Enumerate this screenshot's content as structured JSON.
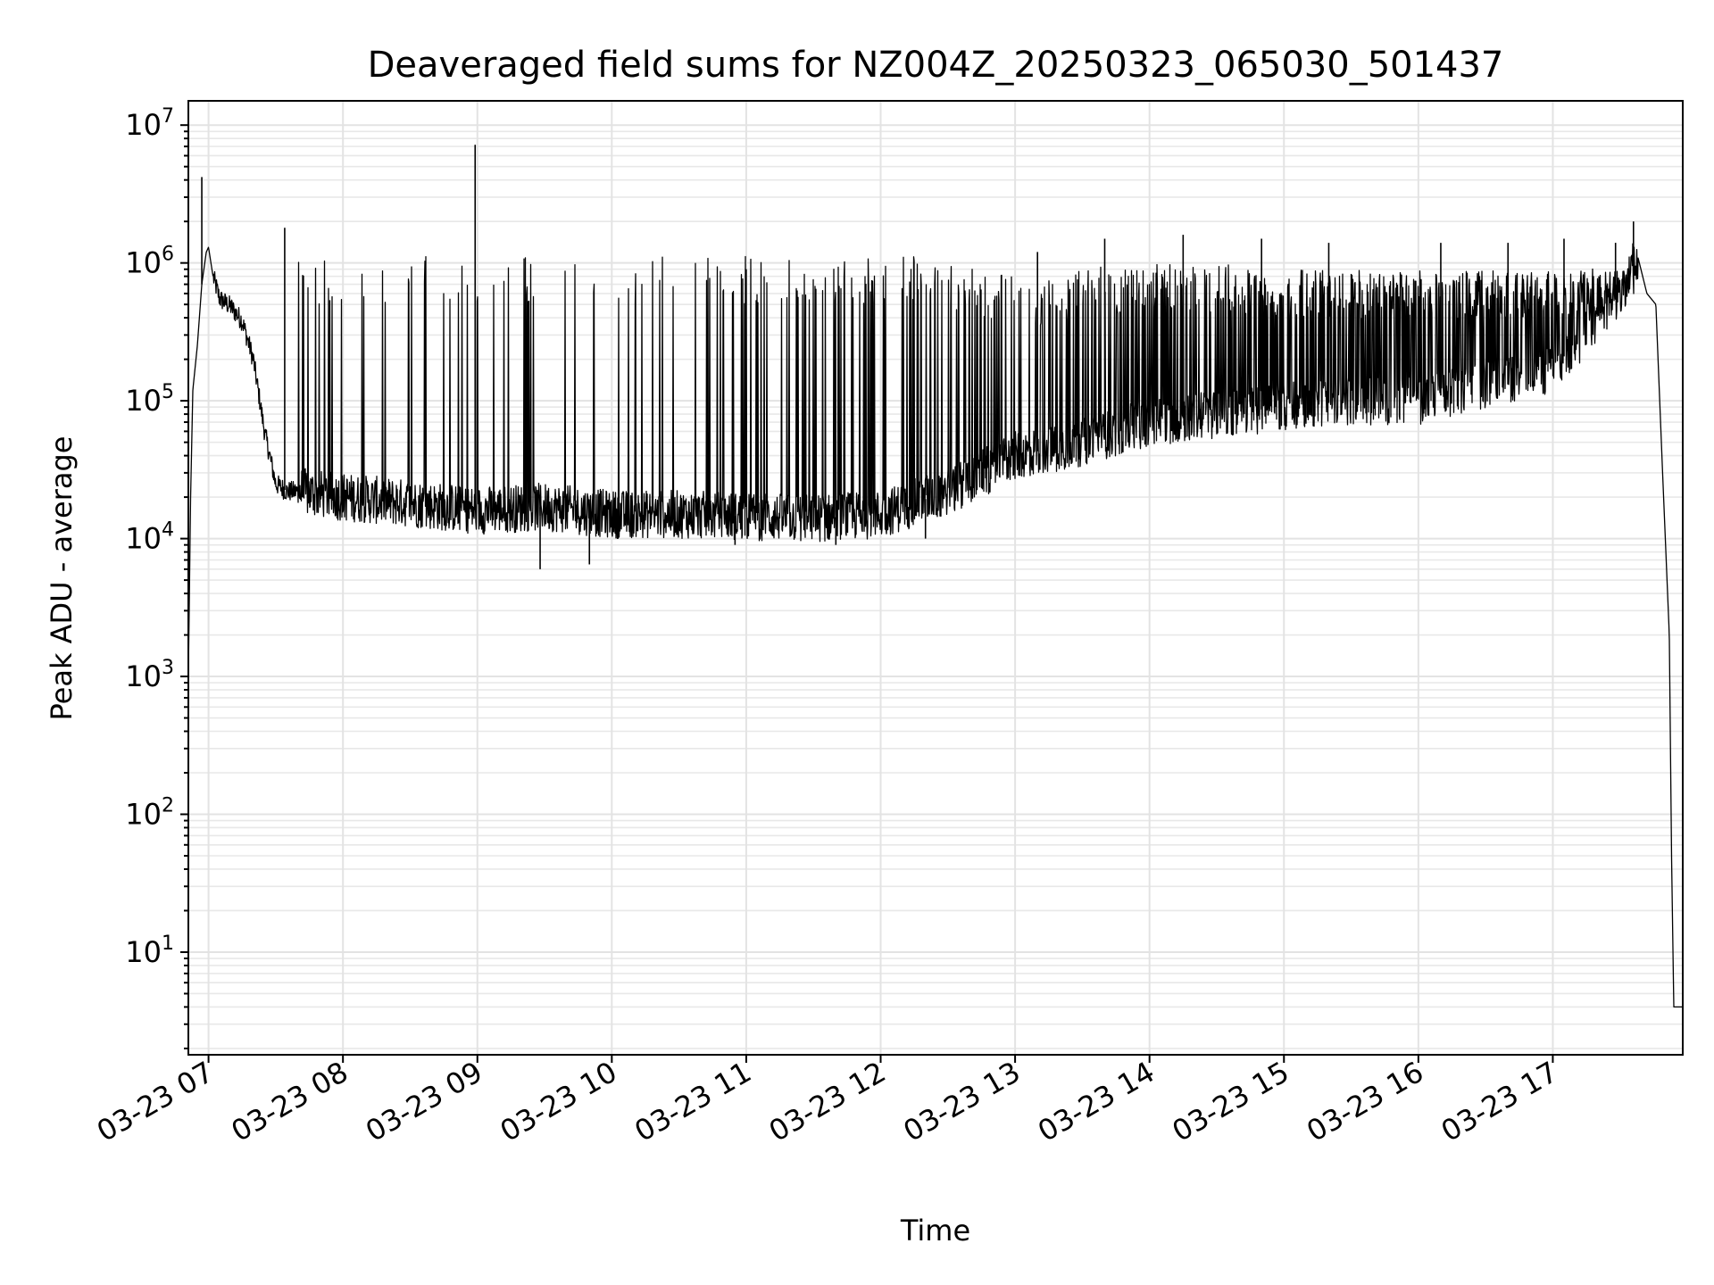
{
  "chart_data": {
    "type": "line",
    "title": "Deaveraged field sums for NZ004Z_20250323_065030_501437",
    "xlabel": "Time",
    "ylabel": "Peak ADU - average",
    "yscale": "log",
    "ylim": [
      1.8,
      15000000
    ],
    "xlim": [
      "2025-03-23 06:51",
      "2025-03-23 17:58"
    ],
    "grid": true,
    "colors": {
      "line": "#000000",
      "grid": "#e3e3e3"
    },
    "x_ticks": [
      {
        "value": "2025-03-23 07:00",
        "label": "03-23 07"
      },
      {
        "value": "2025-03-23 08:00",
        "label": "03-23 08"
      },
      {
        "value": "2025-03-23 09:00",
        "label": "03-23 09"
      },
      {
        "value": "2025-03-23 10:00",
        "label": "03-23 10"
      },
      {
        "value": "2025-03-23 11:00",
        "label": "03-23 11"
      },
      {
        "value": "2025-03-23 12:00",
        "label": "03-23 12"
      },
      {
        "value": "2025-03-23 13:00",
        "label": "03-23 13"
      },
      {
        "value": "2025-03-23 14:00",
        "label": "03-23 14"
      },
      {
        "value": "2025-03-23 15:00",
        "label": "03-23 15"
      },
      {
        "value": "2025-03-23 16:00",
        "label": "03-23 16"
      },
      {
        "value": "2025-03-23 17:00",
        "label": "03-23 17"
      }
    ],
    "y_ticks": [
      {
        "value": 10,
        "base": "10",
        "exp": "1"
      },
      {
        "value": 100,
        "base": "10",
        "exp": "2"
      },
      {
        "value": 1000,
        "base": "10",
        "exp": "3"
      },
      {
        "value": 10000,
        "base": "10",
        "exp": "4"
      },
      {
        "value": 100000,
        "base": "10",
        "exp": "5"
      },
      {
        "value": 1000000,
        "base": "10",
        "exp": "6"
      },
      {
        "value": 10000000,
        "base": "10",
        "exp": "7"
      }
    ],
    "series": [
      {
        "x": [
          "2025-03-23 06:51",
          "2025-03-23 06:52",
          "2025-03-23 06:53",
          "2025-03-23 06:55",
          "2025-03-23 06:57",
          "2025-03-23 06:59",
          "2025-03-23 07:00",
          "2025-03-23 07:02",
          "2025-03-23 07:05",
          "2025-03-23 07:10",
          "2025-03-23 07:15",
          "2025-03-23 07:20",
          "2025-03-23 07:25",
          "2025-03-23 07:30",
          "2025-03-23 07:35",
          "2025-03-23 07:40",
          "2025-03-23 08:00",
          "2025-03-23 08:30",
          "2025-03-23 09:00",
          "2025-03-23 09:30",
          "2025-03-23 10:00",
          "2025-03-23 10:30",
          "2025-03-23 11:00",
          "2025-03-23 11:30",
          "2025-03-23 12:00",
          "2025-03-23 12:30",
          "2025-03-23 13:00",
          "2025-03-23 13:30",
          "2025-03-23 14:00",
          "2025-03-23 14:30",
          "2025-03-23 15:00",
          "2025-03-23 15:30",
          "2025-03-23 16:00",
          "2025-03-23 16:30",
          "2025-03-23 17:00",
          "2025-03-23 17:30",
          "2025-03-23 17:38",
          "2025-03-23 17:42",
          "2025-03-23 17:46",
          "2025-03-23 17:49",
          "2025-03-23 17:52",
          "2025-03-23 17:53",
          "2025-03-23 17:54",
          "2025-03-23 17:56",
          "2025-03-23 17:58"
        ],
        "y": [
          1000,
          20000,
          120000,
          250000,
          700000,
          1200000,
          1300000,
          800000,
          550000,
          480000,
          380000,
          200000,
          60000,
          25000,
          22000,
          22000,
          20000,
          18000,
          16000,
          17000,
          15000,
          15000,
          14500,
          14000,
          15000,
          22000,
          40000,
          50000,
          70000,
          80000,
          90000,
          100000,
          100000,
          130000,
          170000,
          600000,
          1100000,
          600000,
          500000,
          30000,
          2000,
          50,
          4,
          4,
          4
        ]
      },
      {
        "x": [
          "2025-03-23 06:57",
          "2025-03-23 07:34",
          "2025-03-23 08:59",
          "2025-03-23 09:28",
          "2025-03-23 09:50",
          "2025-03-23 10:55",
          "2025-03-23 11:40",
          "2025-03-23 12:20",
          "2025-03-23 13:10",
          "2025-03-23 13:40",
          "2025-03-23 14:15",
          "2025-03-23 14:50",
          "2025-03-23 15:20",
          "2025-03-23 16:10",
          "2025-03-23 16:40",
          "2025-03-23 17:05",
          "2025-03-23 17:28",
          "2025-03-23 17:36"
        ],
        "y": [
          4200000,
          1800000,
          7200000,
          6000,
          6500,
          9000,
          9000,
          10000,
          1200000,
          1500000,
          1600000,
          1500000,
          1400000,
          1400000,
          1400000,
          1500000,
          1400000,
          2000000
        ]
      }
    ]
  }
}
